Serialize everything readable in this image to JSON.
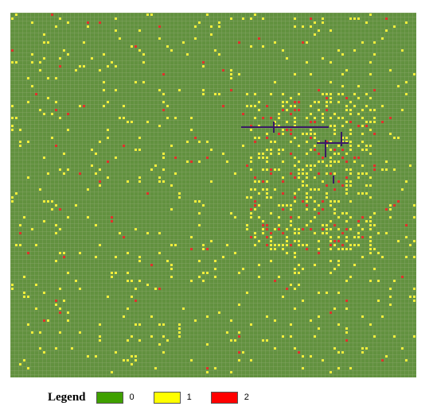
{
  "legend": {
    "title": "Legend",
    "items": [
      {
        "label": "0",
        "color": "#3fa000"
      },
      {
        "label": "1",
        "color": "#ffff00"
      },
      {
        "label": "2",
        "color": "#ff0000"
      }
    ]
  },
  "map": {
    "background_color": "#62913f",
    "cell_colors": {
      "1": "#f2ee3a",
      "2": "#e0302a",
      "path": "#3a1a66"
    }
  }
}
